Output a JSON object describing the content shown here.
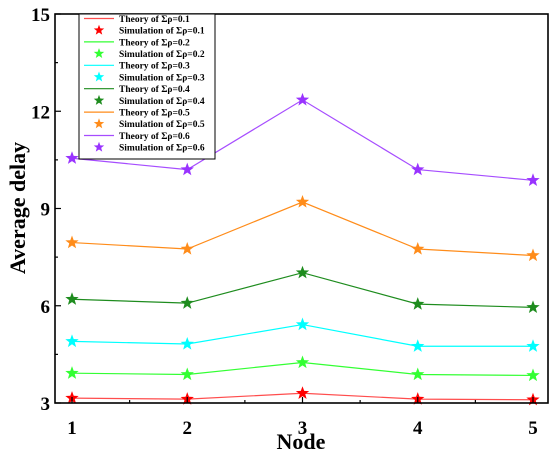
{
  "chart_data": {
    "type": "line",
    "xlabel": "Node",
    "ylabel": "Average delay",
    "x": [
      1,
      2,
      3,
      4,
      5
    ],
    "x_ticks": [
      "1",
      "2",
      "3",
      "4",
      "5"
    ],
    "ylim": [
      3,
      15
    ],
    "y_ticks": [
      "3",
      "6",
      "9",
      "12",
      "15"
    ],
    "grid": false,
    "legend_position": "top-left",
    "series": [
      {
        "name": "Theory of Σρ=0.1",
        "kind": "theory",
        "color": "#ff4d4d",
        "values": [
          3.15,
          3.12,
          3.3,
          3.12,
          3.1
        ]
      },
      {
        "name": "Simulation of Σρ=0.1",
        "kind": "simulation",
        "color": "#ff0000",
        "values": [
          3.15,
          3.12,
          3.3,
          3.12,
          3.1
        ]
      },
      {
        "name": "Theory of Σρ=0.2",
        "kind": "theory",
        "color": "#33ff33",
        "values": [
          3.92,
          3.88,
          4.25,
          3.88,
          3.85
        ]
      },
      {
        "name": "Simulation of Σρ=0.2",
        "kind": "simulation",
        "color": "#33ff33",
        "values": [
          3.92,
          3.88,
          4.25,
          3.88,
          3.85
        ]
      },
      {
        "name": "Theory of Σρ=0.3",
        "kind": "theory",
        "color": "#00ffff",
        "values": [
          4.9,
          4.82,
          5.42,
          4.75,
          4.75
        ]
      },
      {
        "name": "Simulation of  Σρ=0.3",
        "kind": "simulation",
        "color": "#00ffff",
        "values": [
          4.9,
          4.82,
          5.42,
          4.75,
          4.75
        ]
      },
      {
        "name": "Theory of Σρ=0.4",
        "kind": "theory",
        "color": "#1e8c1e",
        "values": [
          6.2,
          6.08,
          7.02,
          6.05,
          5.95
        ]
      },
      {
        "name": "Simulation of  Σρ=0.4",
        "kind": "simulation",
        "color": "#1e8c1e",
        "values": [
          6.2,
          6.08,
          7.02,
          6.05,
          5.95
        ]
      },
      {
        "name": "Theory of Σρ=0.5",
        "kind": "theory",
        "color": "#ff8c1a",
        "values": [
          7.95,
          7.75,
          9.2,
          7.75,
          7.55
        ]
      },
      {
        "name": "Simulation of Σρ=0.5",
        "kind": "simulation",
        "color": "#ff8c1a",
        "values": [
          7.95,
          7.75,
          9.2,
          7.75,
          7.55
        ]
      },
      {
        "name": "Theory of Σρ=0.6",
        "kind": "theory",
        "color": "#a64dff",
        "values": [
          10.55,
          10.2,
          12.35,
          10.2,
          9.87
        ]
      },
      {
        "name": "Simulation of Σρ=0.6",
        "kind": "simulation",
        "color": "#9933ff",
        "values": [
          10.55,
          10.2,
          12.35,
          10.2,
          9.87
        ]
      }
    ]
  }
}
